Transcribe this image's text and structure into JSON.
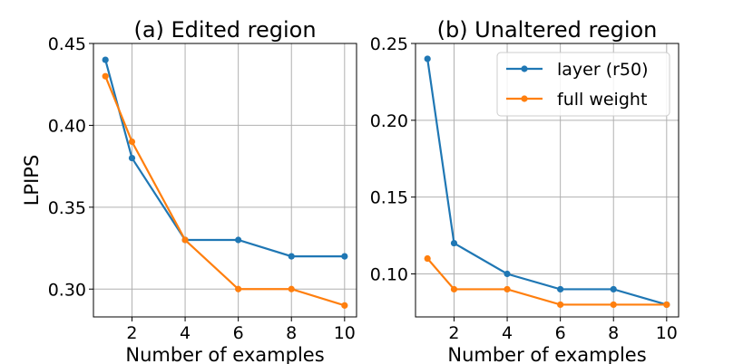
{
  "chart_data": [
    {
      "type": "line",
      "title": "(a) Edited region",
      "xlabel": "Number of examples",
      "ylabel": "LPIPS",
      "xlim": [
        0.55,
        10.45
      ],
      "ylim": [
        0.283,
        0.45
      ],
      "xticks": [
        2,
        4,
        6,
        8,
        10
      ],
      "xtick_labels": [
        "2",
        "4",
        "6",
        "8",
        "10"
      ],
      "yticks": [
        0.3,
        0.35,
        0.4,
        0.45
      ],
      "ytick_labels": [
        "0.30",
        "0.35",
        "0.40",
        "0.45"
      ],
      "grid": true,
      "x": [
        1,
        2,
        4,
        6,
        8,
        10
      ],
      "series": [
        {
          "name": "layer (r50)",
          "color": "#1f77b4",
          "values": [
            0.44,
            0.38,
            0.33,
            0.33,
            0.32,
            0.32
          ]
        },
        {
          "name": "full weight",
          "color": "#ff7f0e",
          "values": [
            0.43,
            0.39,
            0.33,
            0.3,
            0.3,
            0.29
          ]
        }
      ]
    },
    {
      "type": "line",
      "title": "(b) Unaltered region",
      "xlabel": "Number of examples",
      "ylabel": "",
      "xlim": [
        0.55,
        10.45
      ],
      "ylim": [
        0.072,
        0.25
      ],
      "xticks": [
        2,
        4,
        6,
        8,
        10
      ],
      "xtick_labels": [
        "2",
        "4",
        "6",
        "8",
        "10"
      ],
      "yticks": [
        0.1,
        0.15,
        0.2,
        0.25
      ],
      "ytick_labels": [
        "0.10",
        "0.15",
        "0.20",
        "0.25"
      ],
      "grid": true,
      "legend": "top-right",
      "x": [
        1,
        2,
        4,
        6,
        8,
        10
      ],
      "series": [
        {
          "name": "layer (r50)",
          "color": "#1f77b4",
          "values": [
            0.24,
            0.12,
            0.1,
            0.09,
            0.09,
            0.08
          ]
        },
        {
          "name": "full weight",
          "color": "#ff7f0e",
          "values": [
            0.11,
            0.09,
            0.09,
            0.08,
            0.08,
            0.08
          ]
        }
      ]
    }
  ]
}
